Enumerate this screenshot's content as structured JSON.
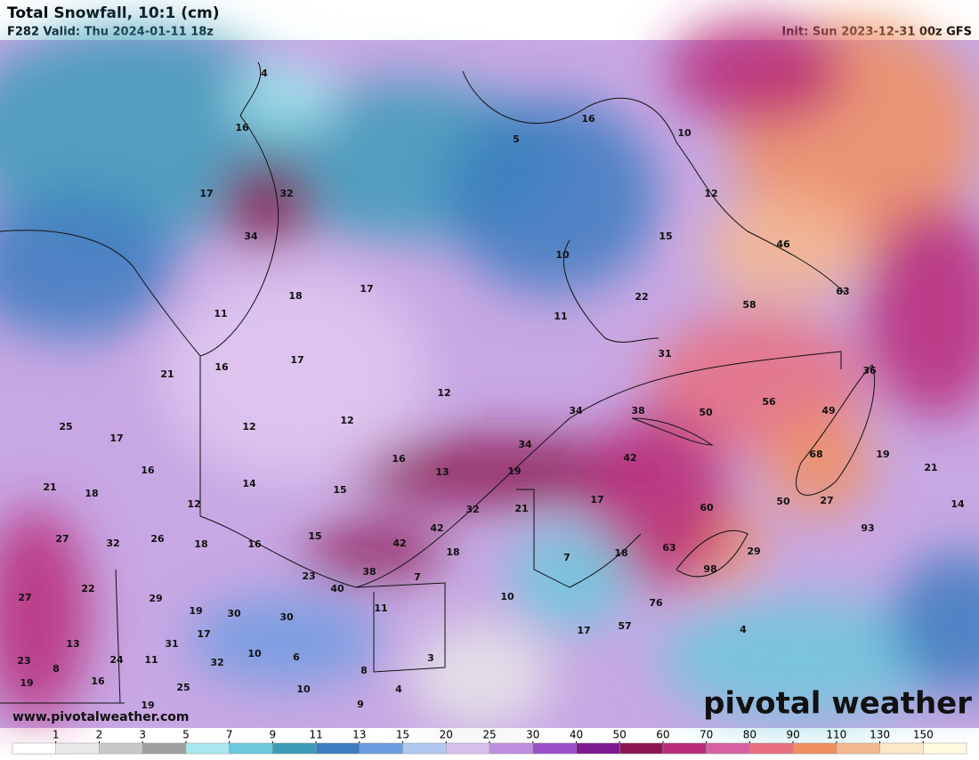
{
  "header": {
    "title": "Total Snowfall, 10:1 (cm)",
    "valid": "F282 Valid: Thu 2024-01-11 18z",
    "init": "Init: Sun 2023-12-31 00z GFS"
  },
  "map": {
    "point_labels": [
      "4",
      "16",
      "17",
      "32",
      "34",
      "5",
      "16",
      "10",
      "12",
      "15",
      "10",
      "46",
      "22",
      "58",
      "63",
      "11",
      "18",
      "17",
      "11",
      "31",
      "16",
      "17",
      "21",
      "36",
      "12",
      "56",
      "49",
      "34",
      "38",
      "50",
      "25",
      "17",
      "12",
      "12",
      "34",
      "68",
      "19",
      "16",
      "13",
      "19",
      "42",
      "16",
      "14",
      "15",
      "21",
      "18",
      "12",
      "21",
      "50",
      "27",
      "14",
      "17",
      "32",
      "21",
      "60",
      "93",
      "27",
      "32",
      "26",
      "18",
      "16",
      "15",
      "42",
      "42",
      "18",
      "7",
      "18",
      "63",
      "98",
      "29",
      "38",
      "23",
      "7",
      "40",
      "22",
      "27",
      "29",
      "10",
      "11",
      "19",
      "30",
      "30",
      "76",
      "57",
      "17",
      "4",
      "13",
      "31",
      "17",
      "10",
      "6",
      "23",
      "8",
      "24",
      "11",
      "32",
      "3",
      "19",
      "16",
      "8",
      "25",
      "10",
      "4",
      "19",
      "9"
    ],
    "watermark": "www.pivotalweather.com",
    "brand": "pivotal weather"
  },
  "colorbar": {
    "ticks": [
      1,
      2,
      3,
      5,
      7,
      9,
      11,
      13,
      15,
      20,
      25,
      30,
      40,
      50,
      60,
      70,
      80,
      90,
      110,
      130,
      150
    ],
    "colors": [
      "#ffffff",
      "#e8e8e8",
      "#c8c8c8",
      "#a0a0a0",
      "#a8e8f0",
      "#6cc8dc",
      "#3c9cb8",
      "#3c7cc0",
      "#6c9ce0",
      "#b0c8f0",
      "#d8c0ec",
      "#c090e0",
      "#9c50c8",
      "#7c1890",
      "#8c1450",
      "#b82c78",
      "#d860a0",
      "#e87080",
      "#f09060",
      "#f4b890",
      "#fce8c8",
      "#fffae0"
    ]
  }
}
